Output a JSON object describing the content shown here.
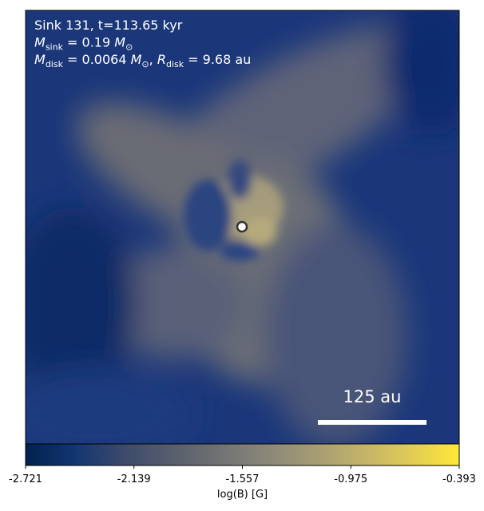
{
  "annotation_lines": [
    [
      {
        "text": "Sink 131, t=113.65 kyr"
      }
    ],
    [
      {
        "text": "M",
        "italic": true
      },
      {
        "text": "sink",
        "sub": true
      },
      {
        "text": " = 0.19 "
      },
      {
        "text": "M",
        "italic": true
      },
      {
        "text": "⊙",
        "sub": true
      }
    ],
    [
      {
        "text": "M",
        "italic": true
      },
      {
        "text": "disk",
        "sub": true
      },
      {
        "text": " = 0.0064 "
      },
      {
        "text": "M",
        "italic": true
      },
      {
        "text": "⊙",
        "sub": true
      },
      {
        "text": ", "
      },
      {
        "text": "R",
        "italic": true
      },
      {
        "text": "disk",
        "sub": true
      },
      {
        "text": " = 9.68 au"
      }
    ]
  ],
  "scale_bar": {
    "label": "125 au"
  },
  "colorbar": {
    "label": "log(B) [G]",
    "lim": [
      -2.721,
      -0.393
    ],
    "ticks": [
      -2.721,
      -2.139,
      -1.557,
      -0.975,
      -0.393
    ],
    "colors": [
      "#00224e",
      "#123570",
      "#3b496c",
      "#575d6d",
      "#707173",
      "#8a8779",
      "#a59c74",
      "#c3b369",
      "#e1cc55",
      "#fee838"
    ]
  }
}
